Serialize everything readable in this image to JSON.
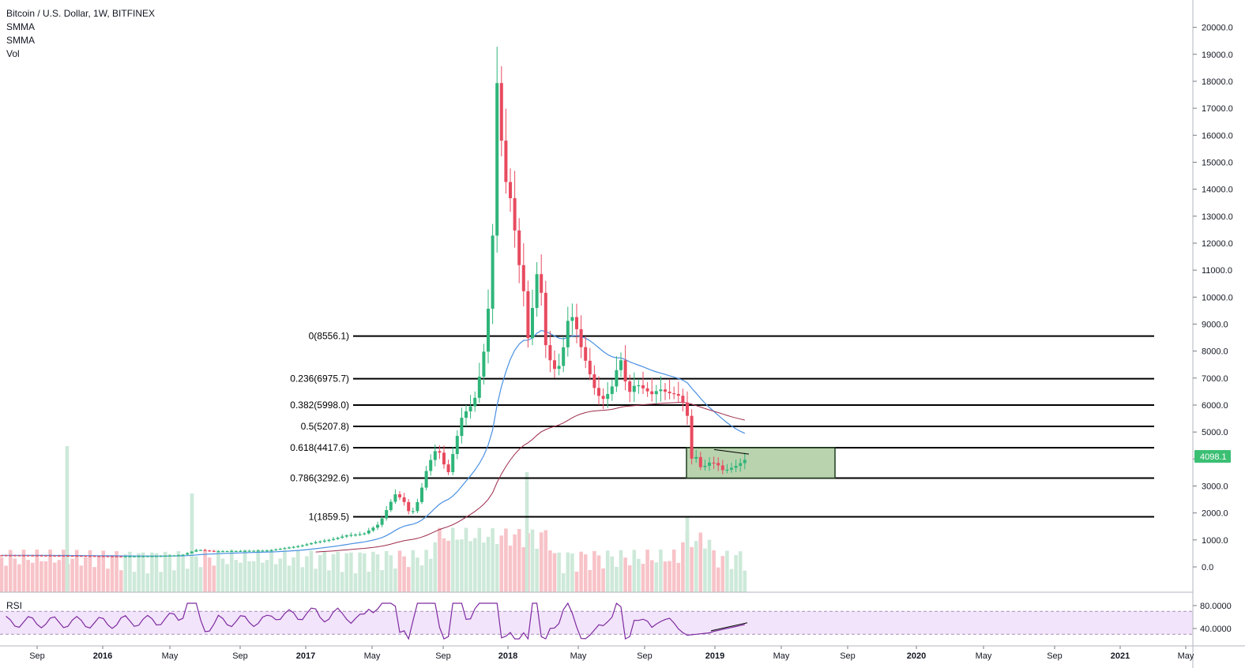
{
  "legend": {
    "symbol": "Bitcoin / U.S. Dollar, 1W, BITFINEX",
    "indicator_1": "SMMA",
    "indicator_2": "SMMA",
    "indicator_3": "Vol"
  },
  "rsi_label": "RSI",
  "current_price": "4098.1",
  "colors": {
    "up": "#26a69a",
    "down": "#ef5350",
    "up_candle": "#2fb57a",
    "down_candle": "#e84a5f",
    "vol_up": "#cde9d9",
    "vol_down": "#f7c3c8",
    "smma_fast": "#4a90e2",
    "smma_slow": "#9c2b4a",
    "rsi_line": "#7e2aa0",
    "rsi_band": "#f2e4fb",
    "zone_fill": "#b9d3ae",
    "price_tag": "#3bbf73"
  },
  "chart_data": {
    "type": "candlestick",
    "price_axis": {
      "range": [
        -500,
        20500
      ],
      "ticks": [
        "20000.0",
        "19000.0",
        "18000.0",
        "17000.0",
        "16000.0",
        "15000.0",
        "14000.0",
        "13000.0",
        "12000.0",
        "11000.0",
        "10000.0",
        "9000.0",
        "8000.0",
        "7000.0",
        "6000.0",
        "5000.0",
        "4000.0",
        "3000.0",
        "2000.0",
        "1000.0",
        "0.0"
      ]
    },
    "rsi_axis": {
      "ticks": [
        "80.0000",
        "40.0000"
      ],
      "band": [
        30,
        70
      ]
    },
    "time_axis": {
      "labels": [
        "Sep",
        "2016",
        "May",
        "Sep",
        "2017",
        "May",
        "Sep",
        "2018",
        "May",
        "Sep",
        "2019",
        "May",
        "Sep",
        "2020",
        "May",
        "Sep",
        "2021",
        "May"
      ]
    },
    "fib_levels": [
      {
        "label": "0(8556.1)",
        "value": 8556.1
      },
      {
        "label": "0.236(6975.7)",
        "value": 6975.7
      },
      {
        "label": "0.382(5998.0)",
        "value": 5998.0
      },
      {
        "label": "0.5(5207.8)",
        "value": 5207.8
      },
      {
        "label": "0.618(4417.6)",
        "value": 4417.6
      },
      {
        "label": "0.786(3292.6)",
        "value": 3292.6
      },
      {
        "label": "1(1859.5)",
        "value": 1859.5
      }
    ],
    "zone": {
      "low": 3292.6,
      "high": 4417.6
    },
    "last_price": 4098.1
  }
}
